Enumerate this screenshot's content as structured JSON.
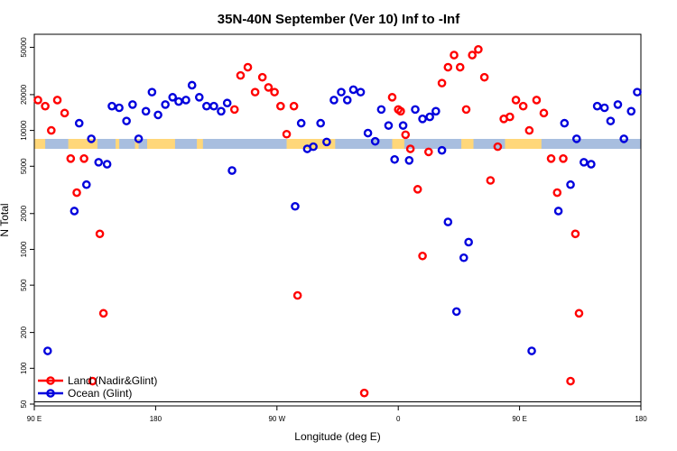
{
  "chart_data": {
    "type": "scatter",
    "title": "35N-40N September (Ver 10)   Inf to -Inf",
    "xlabel": "Longitude (deg E)",
    "ylabel": "N Total",
    "y_scale": "log",
    "ylim": [
      50,
      60000
    ],
    "x_ticks": [
      {
        "v": 0,
        "label": "90 E"
      },
      {
        "v": 1,
        "label": "180"
      },
      {
        "v": 2,
        "label": "90 W"
      },
      {
        "v": 3,
        "label": "0"
      },
      {
        "v": 4,
        "label": "90 E"
      },
      {
        "v": 5,
        "label": "180"
      }
    ],
    "y_ticks": [
      50,
      100,
      200,
      500,
      1000,
      2000,
      5000,
      10000,
      20000,
      50000
    ],
    "land_bands": [
      [
        0.0,
        0.09
      ],
      [
        0.28,
        0.52
      ],
      [
        0.67,
        0.7
      ],
      [
        0.83,
        0.86
      ],
      [
        0.93,
        1.16
      ],
      [
        1.34,
        1.39
      ],
      [
        2.08,
        2.48
      ],
      [
        2.95,
        3.05
      ],
      [
        3.52,
        3.62
      ],
      [
        3.88,
        4.18
      ]
    ],
    "series": [
      {
        "name": "Land (Nadir&Glint)",
        "color": "#ff0000",
        "points": [
          [
            0.03,
            18000
          ],
          [
            0.09,
            16000
          ],
          [
            0.14,
            10000
          ],
          [
            0.19,
            18000
          ],
          [
            0.25,
            14000
          ],
          [
            0.3,
            5800
          ],
          [
            0.35,
            3000
          ],
          [
            0.41,
            5800
          ],
          [
            0.48,
            78
          ],
          [
            0.54,
            1350
          ],
          [
            0.57,
            290
          ],
          [
            1.65,
            15000
          ],
          [
            1.7,
            29000
          ],
          [
            1.76,
            34000
          ],
          [
            1.82,
            21000
          ],
          [
            1.88,
            28000
          ],
          [
            1.93,
            23000
          ],
          [
            1.98,
            21000
          ],
          [
            2.03,
            16000
          ],
          [
            2.08,
            9300
          ],
          [
            2.14,
            16000
          ],
          [
            2.17,
            410
          ],
          [
            2.72,
            62
          ],
          [
            3.0,
            15000
          ],
          [
            2.95,
            19000
          ],
          [
            3.02,
            14500
          ],
          [
            3.06,
            9200
          ],
          [
            3.1,
            7000
          ],
          [
            3.16,
            3200
          ],
          [
            3.2,
            880
          ],
          [
            3.25,
            6600
          ],
          [
            3.36,
            25000
          ],
          [
            3.41,
            34000
          ],
          [
            3.46,
            43000
          ],
          [
            3.51,
            34000
          ],
          [
            3.56,
            15000
          ],
          [
            3.61,
            43000
          ],
          [
            3.66,
            48000
          ],
          [
            3.71,
            28000
          ],
          [
            3.76,
            3800
          ],
          [
            3.82,
            7300
          ],
          [
            3.87,
            12500
          ],
          [
            3.92,
            13000
          ],
          [
            3.97,
            18000
          ],
          [
            4.03,
            16000
          ],
          [
            4.08,
            10000
          ],
          [
            4.14,
            18000
          ],
          [
            4.2,
            14000
          ],
          [
            4.26,
            5800
          ],
          [
            4.31,
            3000
          ],
          [
            4.36,
            5800
          ],
          [
            4.42,
            78
          ],
          [
            4.46,
            1350
          ],
          [
            4.49,
            290
          ]
        ]
      },
      {
        "name": "Ocean (Glint)",
        "color": "#0000dd",
        "points": [
          [
            0.11,
            140
          ],
          [
            0.33,
            2100
          ],
          [
            0.37,
            11500
          ],
          [
            0.43,
            3500
          ],
          [
            0.47,
            8500
          ],
          [
            0.53,
            5400
          ],
          [
            0.6,
            5200
          ],
          [
            0.64,
            16000
          ],
          [
            0.7,
            15500
          ],
          [
            0.76,
            12000
          ],
          [
            0.81,
            16500
          ],
          [
            0.86,
            8500
          ],
          [
            0.92,
            14500
          ],
          [
            0.97,
            21000
          ],
          [
            1.02,
            13500
          ],
          [
            1.08,
            16500
          ],
          [
            1.14,
            19000
          ],
          [
            1.19,
            17500
          ],
          [
            1.25,
            18000
          ],
          [
            1.3,
            24000
          ],
          [
            1.36,
            19000
          ],
          [
            1.42,
            16000
          ],
          [
            1.48,
            16000
          ],
          [
            1.54,
            14500
          ],
          [
            1.59,
            17000
          ],
          [
            1.63,
            4600
          ],
          [
            2.15,
            2300
          ],
          [
            2.2,
            11500
          ],
          [
            2.25,
            7000
          ],
          [
            2.3,
            7300
          ],
          [
            2.36,
            11500
          ],
          [
            2.41,
            8000
          ],
          [
            2.47,
            18000
          ],
          [
            2.53,
            21000
          ],
          [
            2.58,
            18000
          ],
          [
            2.63,
            22000
          ],
          [
            2.69,
            21000
          ],
          [
            2.75,
            9500
          ],
          [
            2.81,
            8100
          ],
          [
            2.86,
            15000
          ],
          [
            2.92,
            11000
          ],
          [
            2.97,
            5700
          ],
          [
            3.04,
            11000
          ],
          [
            3.09,
            5600
          ],
          [
            3.14,
            15000
          ],
          [
            3.2,
            12500
          ],
          [
            3.26,
            13000
          ],
          [
            3.31,
            14500
          ],
          [
            3.36,
            6800
          ],
          [
            3.41,
            1700
          ],
          [
            3.48,
            300
          ],
          [
            3.54,
            850
          ],
          [
            3.58,
            1150
          ],
          [
            4.1,
            140
          ],
          [
            4.32,
            2100
          ],
          [
            4.37,
            11500
          ],
          [
            4.42,
            3500
          ],
          [
            4.47,
            8500
          ],
          [
            4.53,
            5400
          ],
          [
            4.59,
            5200
          ],
          [
            4.64,
            16000
          ],
          [
            4.7,
            15500
          ],
          [
            4.75,
            12000
          ],
          [
            4.81,
            16500
          ],
          [
            4.86,
            8500
          ],
          [
            4.92,
            14500
          ],
          [
            4.97,
            21000
          ]
        ]
      }
    ],
    "legend": {
      "position": "bottom-left",
      "entries": [
        "Land (Nadir&Glint)",
        "Ocean (Glint)"
      ]
    },
    "colors": {
      "land_band": "#ffd77a",
      "ocean_band": "#a8bedf",
      "axis": "#000000"
    }
  }
}
